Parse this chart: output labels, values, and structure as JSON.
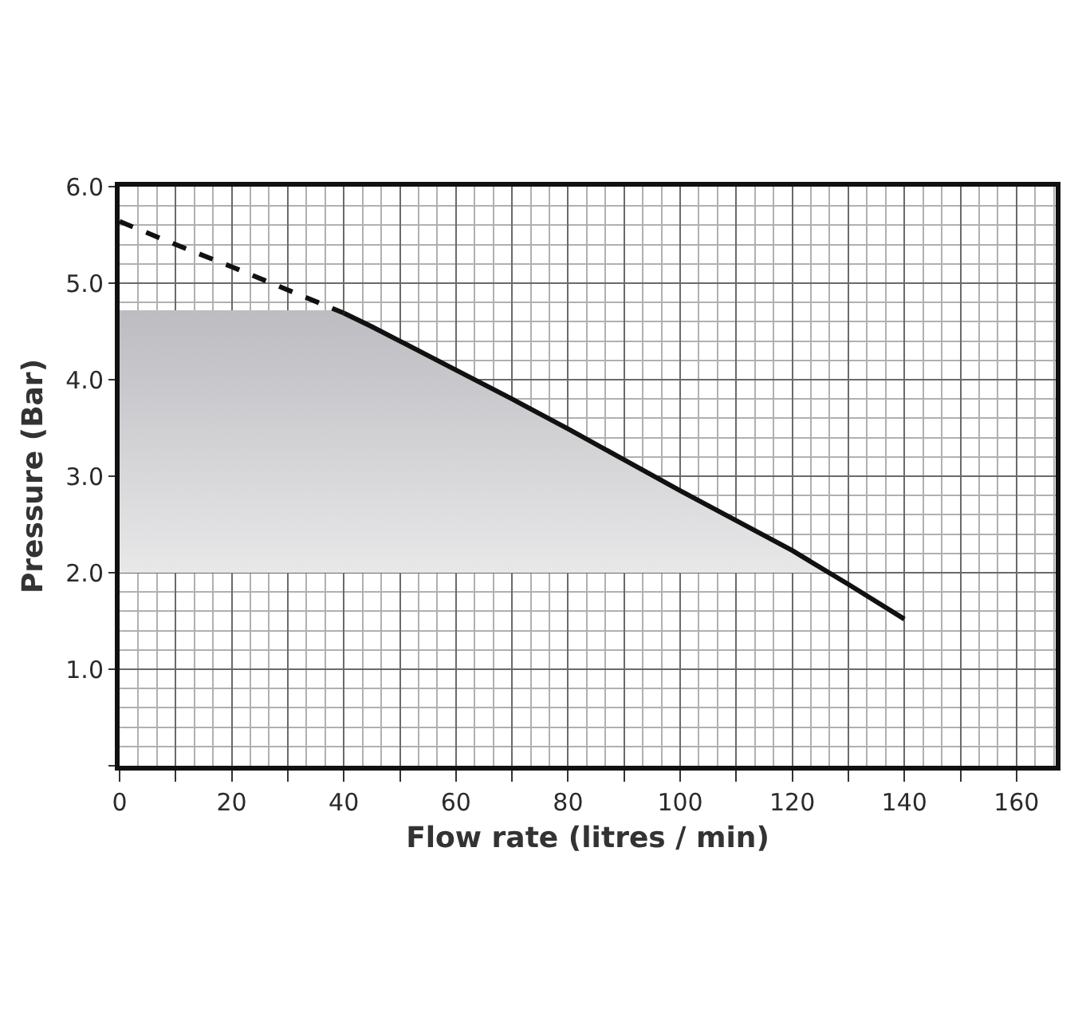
{
  "chart_data": {
    "type": "line",
    "xlabel": "Flow rate (litres / min)",
    "ylabel": "Pressure (Bar)",
    "xlim": [
      0,
      167
    ],
    "ylim": [
      0,
      6
    ],
    "xticks": [
      0,
      {
        "value": 10,
        "label": null
      },
      20,
      {
        "value": 30,
        "label": null
      },
      40,
      {
        "value": 50,
        "label": null
      },
      60,
      {
        "value": 70,
        "label": null
      },
      80,
      {
        "value": 90,
        "label": null
      },
      100,
      {
        "value": 110,
        "label": null
      },
      120,
      {
        "value": 130,
        "label": null
      },
      140,
      {
        "value": 150,
        "label": null
      },
      160
    ],
    "yticks": [
      {
        "value": 0,
        "label": null
      },
      {
        "value": 1,
        "label": "1.0"
      },
      {
        "value": 2,
        "label": "2.0"
      },
      {
        "value": 3,
        "label": "3.0"
      },
      {
        "value": 4,
        "label": "4.0"
      },
      {
        "value": 5,
        "label": "5.0"
      },
      {
        "value": 6,
        "label": "6.0"
      }
    ],
    "grid": true,
    "marker": "none",
    "series": [
      {
        "type": "area",
        "color": "#bcbcc1",
        "x": [
          0,
          40,
          45,
          50,
          60,
          70,
          80,
          90,
          100,
          110,
          120,
          127,
          0
        ],
        "values": [
          4.72,
          4.72,
          4.55,
          4.4,
          4.1,
          3.8,
          3.49,
          3.17,
          2.85,
          2.54,
          2.23,
          2.0,
          2.0
        ]
      },
      {
        "color": "#111111",
        "line_style": "dashed",
        "x": [
          0,
          10,
          20,
          30,
          40
        ],
        "values": [
          5.64,
          5.4,
          5.17,
          4.93,
          4.69
        ]
      },
      {
        "color": "#111111",
        "line_style": "solid",
        "x": [
          40,
          45,
          50,
          60,
          70,
          80,
          90,
          100,
          110,
          120,
          130,
          140
        ],
        "values": [
          4.69,
          4.55,
          4.4,
          4.1,
          3.8,
          3.49,
          3.17,
          2.85,
          2.54,
          2.23,
          1.88,
          1.52
        ]
      }
    ]
  }
}
